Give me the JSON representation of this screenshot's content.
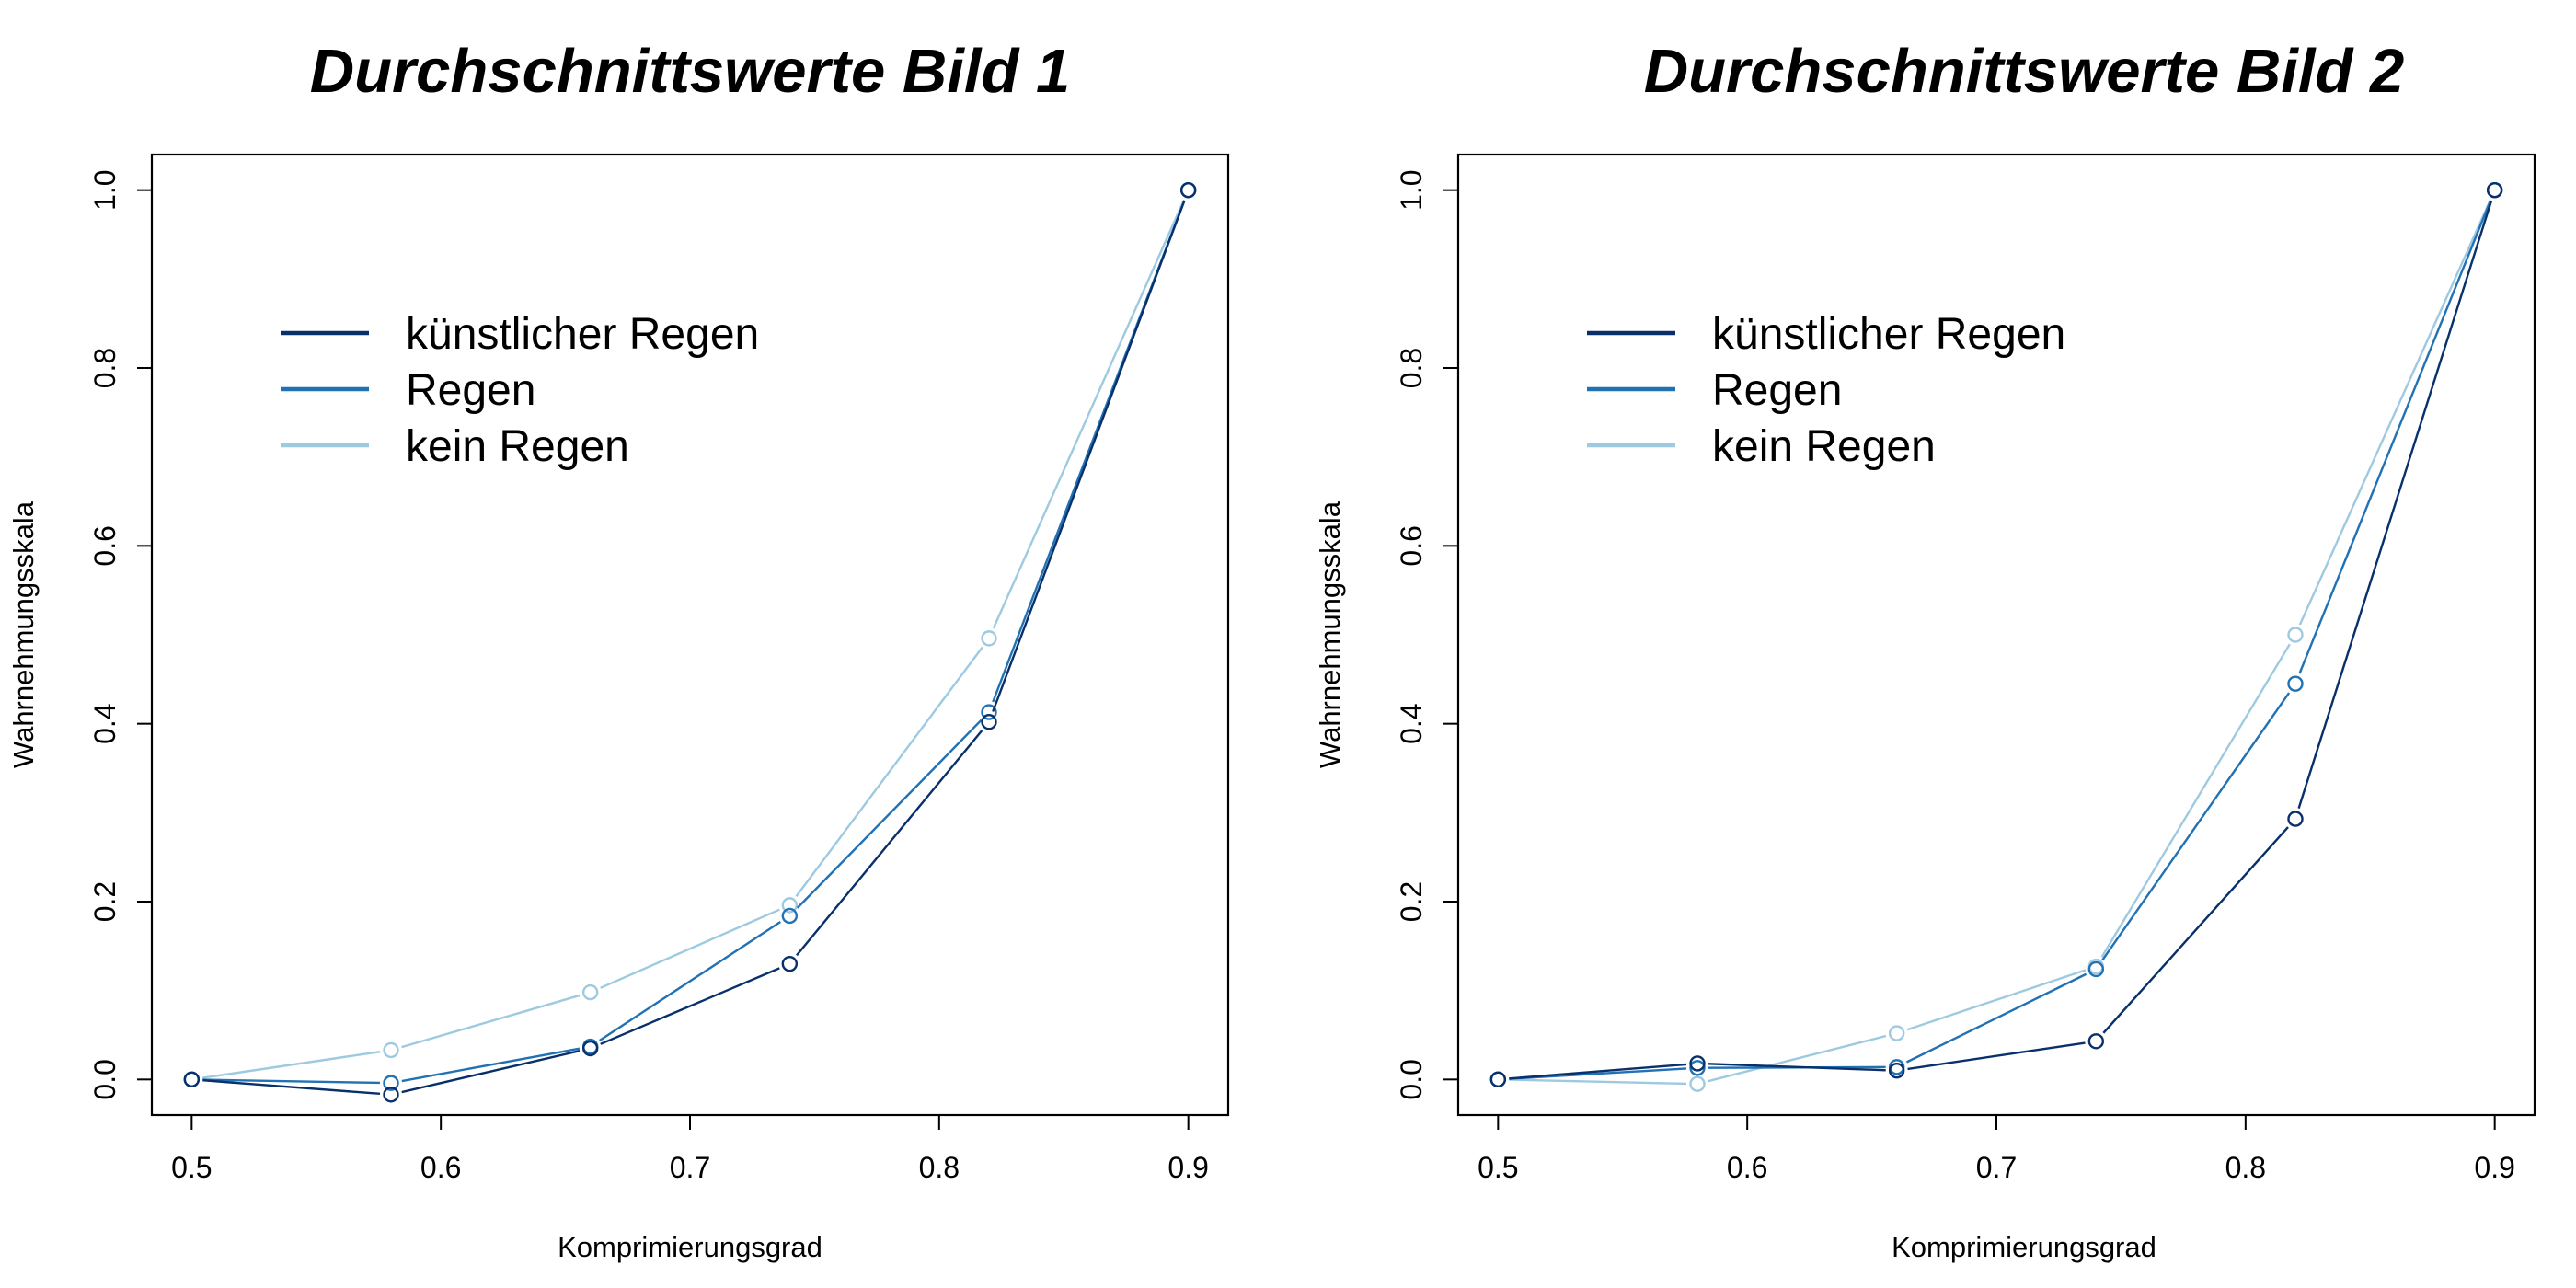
{
  "chart_data": [
    {
      "type": "line",
      "title": "Durchschnittswerte Bild 1",
      "xlabel": "Komprimierungsgrad",
      "ylabel": "Wahrnehmungsskala",
      "x": [
        0.5,
        0.58,
        0.66,
        0.74,
        0.82,
        0.9
      ],
      "xticks": [
        "0.5",
        "0.6",
        "0.7",
        "0.8",
        "0.9"
      ],
      "yticks": [
        "0.0",
        "0.2",
        "0.4",
        "0.6",
        "0.8",
        "1.0"
      ],
      "xlim": [
        0.484,
        0.916
      ],
      "ylim": [
        -0.04,
        1.04
      ],
      "grid": false,
      "legend_position": "top-left",
      "series": [
        {
          "name": "kein Regen",
          "color": "#9ecae1",
          "values": [
            0.0,
            0.033,
            0.098,
            0.196,
            0.496,
            1.0
          ]
        },
        {
          "name": "Regen",
          "color": "#2171b5",
          "values": [
            0.0,
            -0.004,
            0.037,
            0.184,
            0.413,
            1.0
          ]
        },
        {
          "name": "künstlicher Regen",
          "color": "#08306b",
          "values": [
            0.0,
            -0.017,
            0.035,
            0.13,
            0.402,
            1.0
          ]
        }
      ]
    },
    {
      "type": "line",
      "title": "Durchschnittswerte Bild 2",
      "xlabel": "Komprimierungsgrad",
      "ylabel": "Wahrnehmungsskala",
      "x": [
        0.5,
        0.58,
        0.66,
        0.74,
        0.82,
        0.9
      ],
      "xticks": [
        "0.5",
        "0.6",
        "0.7",
        "0.8",
        "0.9"
      ],
      "yticks": [
        "0.0",
        "0.2",
        "0.4",
        "0.6",
        "0.8",
        "1.0"
      ],
      "xlim": [
        0.484,
        0.916
      ],
      "ylim": [
        -0.04,
        1.04
      ],
      "grid": false,
      "legend_position": "top-left",
      "series": [
        {
          "name": "kein Regen",
          "color": "#9ecae1",
          "values": [
            0.0,
            -0.005,
            0.052,
            0.127,
            0.5,
            1.0
          ]
        },
        {
          "name": "Regen",
          "color": "#2171b5",
          "values": [
            0.0,
            0.013,
            0.014,
            0.124,
            0.445,
            1.0
          ]
        },
        {
          "name": "künstlicher Regen",
          "color": "#08306b",
          "values": [
            0.0,
            0.018,
            0.01,
            0.043,
            0.293,
            1.0
          ]
        }
      ]
    }
  ]
}
